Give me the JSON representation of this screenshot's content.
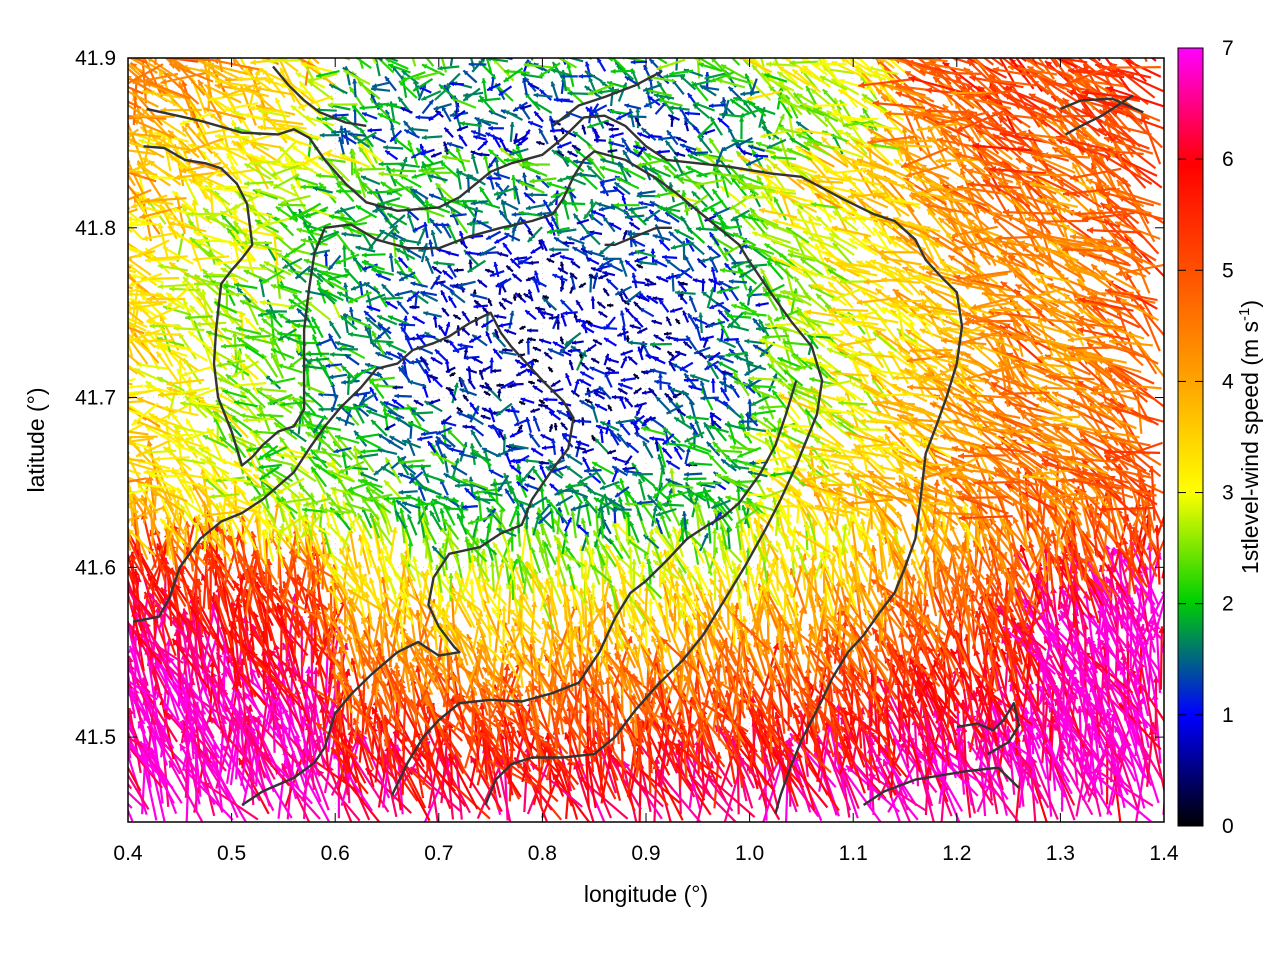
{
  "chart_data": {
    "type": "vector-field",
    "xlabel": "longitude (°)",
    "ylabel": "latitude (°)",
    "xlim": [
      0.4,
      1.4
    ],
    "ylim": [
      41.45,
      41.9
    ],
    "xticks": [
      "0.4",
      "0.5",
      "0.6",
      "0.7",
      "0.8",
      "0.9",
      "1.0",
      "1.1",
      "1.2",
      "1.3",
      "1.4"
    ],
    "yticks": [
      "41.5",
      "41.6",
      "41.7",
      "41.8",
      "41.9"
    ],
    "grid": true,
    "colorbar": {
      "label_main": "1stlevel-wind speed (m s",
      "label_sup": "-1",
      "label_end": ")",
      "range": [
        0,
        7
      ],
      "ticks": [
        "0",
        "1",
        "2",
        "3",
        "4",
        "5",
        "6",
        "7"
      ],
      "colors": [
        "#000000",
        "#0000ff",
        "#00d000",
        "#ffff00",
        "#ffa500",
        "#ff0000",
        "#ff00ff"
      ]
    },
    "wind_field_regions": [
      {
        "region": "north-center",
        "speed_range": [
          0.5,
          2.5
        ]
      },
      {
        "region": "center basin",
        "speed_range": [
          0.3,
          2.0
        ]
      },
      {
        "region": "southwest",
        "speed_range": [
          3.5,
          6.5
        ]
      },
      {
        "region": "south-center",
        "speed_range": [
          3.0,
          5.0
        ]
      },
      {
        "region": "southeast",
        "speed_range": [
          3.5,
          6.0
        ]
      },
      {
        "region": "east",
        "speed_range": [
          3.0,
          5.5
        ]
      }
    ],
    "contour_lines": [
      [
        [
          0.418,
          41.87
        ],
        [
          0.47,
          41.863
        ],
        [
          0.51,
          41.856
        ],
        [
          0.545,
          41.855
        ],
        [
          0.56,
          41.858
        ],
        [
          0.575,
          41.853
        ],
        [
          0.59,
          41.84
        ],
        [
          0.61,
          41.826
        ],
        [
          0.63,
          41.815
        ],
        [
          0.66,
          41.81
        ],
        [
          0.7,
          41.812
        ],
        [
          0.72,
          41.818
        ],
        [
          0.75,
          41.833
        ],
        [
          0.77,
          41.838
        ],
        [
          0.8,
          41.843
        ],
        [
          0.82,
          41.853
        ],
        [
          0.84,
          41.865
        ],
        [
          0.86,
          41.866
        ],
        [
          0.88,
          41.86
        ],
        [
          0.9,
          41.848
        ],
        [
          0.92,
          41.84
        ],
        [
          0.95,
          41.838
        ],
        [
          0.98,
          41.836
        ],
        [
          1.0,
          41.834
        ],
        [
          1.02,
          41.832
        ],
        [
          1.05,
          41.83
        ],
        [
          1.09,
          41.817
        ],
        [
          1.12,
          41.808
        ],
        [
          1.14,
          41.804
        ],
        [
          1.16,
          41.793
        ],
        [
          1.17,
          41.781
        ],
        [
          1.185,
          41.771
        ],
        [
          1.2,
          41.762
        ],
        [
          1.205,
          41.742
        ],
        [
          1.2,
          41.72
        ],
        [
          1.19,
          41.7
        ],
        [
          1.18,
          41.683
        ],
        [
          1.17,
          41.667
        ],
        [
          1.165,
          41.64
        ],
        [
          1.16,
          41.617
        ],
        [
          1.15,
          41.6
        ],
        [
          1.14,
          41.585
        ],
        [
          1.125,
          41.573
        ],
        [
          1.11,
          41.56
        ],
        [
          1.095,
          41.55
        ],
        [
          1.08,
          41.535
        ],
        [
          1.07,
          41.522
        ],
        [
          1.06,
          41.51
        ],
        [
          1.05,
          41.498
        ],
        [
          1.04,
          41.483
        ],
        [
          1.03,
          41.466
        ],
        [
          1.025,
          41.455
        ]
      ],
      [
        [
          0.415,
          41.848
        ],
        [
          0.435,
          41.847
        ],
        [
          0.455,
          41.84
        ],
        [
          0.475,
          41.838
        ],
        [
          0.49,
          41.835
        ],
        [
          0.505,
          41.826
        ],
        [
          0.515,
          41.814
        ],
        [
          0.52,
          41.79
        ],
        [
          0.51,
          41.782
        ],
        [
          0.5,
          41.775
        ],
        [
          0.49,
          41.767
        ],
        [
          0.485,
          41.74
        ],
        [
          0.483,
          41.72
        ],
        [
          0.487,
          41.7
        ],
        [
          0.5,
          41.68
        ],
        [
          0.51,
          41.66
        ],
        [
          0.52,
          41.665
        ],
        [
          0.53,
          41.672
        ],
        [
          0.545,
          41.68
        ],
        [
          0.56,
          41.683
        ],
        [
          0.57,
          41.693
        ],
        [
          0.57,
          41.71
        ],
        [
          0.57,
          41.74
        ],
        [
          0.575,
          41.765
        ],
        [
          0.58,
          41.785
        ],
        [
          0.59,
          41.8
        ],
        [
          0.615,
          41.802
        ],
        [
          0.64,
          41.793
        ],
        [
          0.67,
          41.788
        ],
        [
          0.7,
          41.788
        ],
        [
          0.73,
          41.795
        ],
        [
          0.76,
          41.8
        ],
        [
          0.79,
          41.804
        ],
        [
          0.81,
          41.808
        ],
        [
          0.82,
          41.817
        ],
        [
          0.83,
          41.83
        ],
        [
          0.84,
          41.84
        ],
        [
          0.85,
          41.845
        ],
        [
          0.88,
          41.84
        ],
        [
          0.91,
          41.829
        ],
        [
          0.93,
          41.82
        ],
        [
          0.95,
          41.81
        ],
        [
          0.97,
          41.8
        ],
        [
          0.99,
          41.79
        ],
        [
          1.0,
          41.78
        ],
        [
          1.02,
          41.762
        ],
        [
          1.04,
          41.745
        ],
        [
          1.06,
          41.73
        ],
        [
          1.07,
          41.71
        ],
        [
          1.065,
          41.69
        ],
        [
          1.055,
          41.675
        ],
        [
          1.045,
          41.66
        ],
        [
          1.03,
          41.64
        ],
        [
          1.015,
          41.622
        ],
        [
          0.995,
          41.6
        ],
        [
          0.975,
          41.58
        ],
        [
          0.955,
          41.56
        ],
        [
          0.935,
          41.545
        ],
        [
          0.91,
          41.53
        ],
        [
          0.89,
          41.516
        ],
        [
          0.87,
          41.5
        ],
        [
          0.85,
          41.49
        ],
        [
          0.82,
          41.488
        ],
        [
          0.79,
          41.488
        ],
        [
          0.77,
          41.484
        ],
        [
          0.755,
          41.475
        ],
        [
          0.745,
          41.46
        ]
      ],
      [
        [
          0.405,
          41.568
        ],
        [
          0.43,
          41.571
        ],
        [
          0.44,
          41.582
        ],
        [
          0.45,
          41.6
        ],
        [
          0.47,
          41.617
        ],
        [
          0.49,
          41.627
        ],
        [
          0.51,
          41.632
        ],
        [
          0.53,
          41.64
        ],
        [
          0.56,
          41.656
        ],
        [
          0.575,
          41.67
        ],
        [
          0.59,
          41.683
        ],
        [
          0.605,
          41.694
        ],
        [
          0.625,
          41.706
        ],
        [
          0.64,
          41.717
        ],
        [
          0.66,
          41.72
        ],
        [
          0.675,
          41.728
        ],
        [
          0.695,
          41.732
        ],
        [
          0.71,
          41.736
        ],
        [
          0.73,
          41.744
        ],
        [
          0.75,
          41.75
        ],
        [
          0.76,
          41.738
        ],
        [
          0.77,
          41.73
        ],
        [
          0.785,
          41.72
        ],
        [
          0.8,
          41.71
        ],
        [
          0.82,
          41.698
        ],
        [
          0.83,
          41.688
        ],
        [
          0.825,
          41.67
        ],
        [
          0.81,
          41.658
        ],
        [
          0.79,
          41.64
        ],
        [
          0.78,
          41.625
        ],
        [
          0.76,
          41.62
        ],
        [
          0.74,
          41.612
        ],
        [
          0.71,
          41.608
        ],
        [
          0.695,
          41.594
        ],
        [
          0.69,
          41.578
        ],
        [
          0.7,
          41.565
        ],
        [
          0.715,
          41.553
        ],
        [
          0.72,
          41.55
        ],
        [
          0.7,
          41.548
        ],
        [
          0.68,
          41.556
        ],
        [
          0.66,
          41.55
        ],
        [
          0.635,
          41.537
        ],
        [
          0.615,
          41.525
        ],
        [
          0.6,
          41.514
        ],
        [
          0.59,
          41.494
        ],
        [
          0.58,
          41.485
        ],
        [
          0.56,
          41.476
        ],
        [
          0.53,
          41.468
        ],
        [
          0.51,
          41.46
        ]
      ],
      [
        [
          0.655,
          41.466
        ],
        [
          0.67,
          41.485
        ],
        [
          0.685,
          41.5
        ],
        [
          0.7,
          41.51
        ],
        [
          0.72,
          41.52
        ],
        [
          0.75,
          41.522
        ],
        [
          0.78,
          41.521
        ],
        [
          0.81,
          41.526
        ],
        [
          0.835,
          41.532
        ],
        [
          0.855,
          41.55
        ],
        [
          0.87,
          41.57
        ],
        [
          0.885,
          41.585
        ],
        [
          0.9,
          41.592
        ],
        [
          0.92,
          41.604
        ],
        [
          0.94,
          41.617
        ],
        [
          0.96,
          41.625
        ],
        [
          0.975,
          41.63
        ],
        [
          0.99,
          41.638
        ],
        [
          1.01,
          41.655
        ],
        [
          1.025,
          41.672
        ],
        [
          1.035,
          41.69
        ],
        [
          1.045,
          41.71
        ]
      ],
      [
        [
          1.11,
          41.46
        ],
        [
          1.13,
          41.468
        ],
        [
          1.16,
          41.475
        ],
        [
          1.19,
          41.478
        ],
        [
          1.21,
          41.48
        ],
        [
          1.24,
          41.482
        ],
        [
          1.26,
          41.47
        ]
      ],
      [
        [
          1.2,
          41.506
        ],
        [
          1.22,
          41.508
        ],
        [
          1.235,
          41.504
        ],
        [
          1.245,
          41.51
        ],
        [
          1.255,
          41.52
        ],
        [
          1.26,
          41.507
        ],
        [
          1.25,
          41.497
        ],
        [
          1.23,
          41.49
        ]
      ],
      [
        [
          1.3,
          41.87
        ],
        [
          1.32,
          41.875
        ],
        [
          1.35,
          41.876
        ],
        [
          1.38,
          41.868
        ]
      ],
      [
        [
          0.81,
          41.86
        ],
        [
          0.835,
          41.872
        ],
        [
          0.86,
          41.877
        ],
        [
          0.89,
          41.884
        ],
        [
          0.915,
          41.892
        ]
      ],
      [
        [
          0.54,
          41.895
        ],
        [
          0.555,
          41.884
        ],
        [
          0.57,
          41.875
        ],
        [
          0.585,
          41.868
        ],
        [
          0.61,
          41.862
        ],
        [
          0.63,
          41.86
        ]
      ],
      [
        [
          1.305,
          41.855
        ],
        [
          1.32,
          41.86
        ],
        [
          1.34,
          41.866
        ],
        [
          1.355,
          41.872
        ],
        [
          1.37,
          41.878
        ]
      ],
      [
        [
          0.86,
          41.79
        ],
        [
          0.87,
          41.79
        ],
        [
          0.89,
          41.795
        ],
        [
          0.91,
          41.8
        ],
        [
          0.925,
          41.8
        ]
      ]
    ]
  }
}
